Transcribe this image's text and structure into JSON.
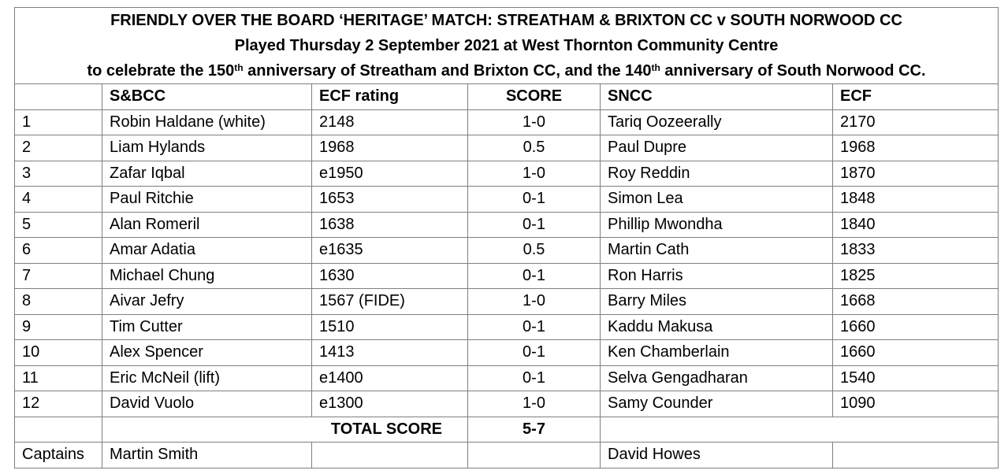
{
  "header": {
    "line1": "FRIENDLY OVER THE BOARD ‘HERITAGE’ MATCH: STREATHAM & BRIXTON CC v SOUTH NORWOOD CC",
    "line2": "Played Thursday 2 September 2021 at West Thornton Community Centre",
    "line3_a": "to celebrate the 150",
    "line3_sup1": "th",
    "line3_b": " anniversary of Streatham and Brixton CC, and the 140",
    "line3_sup2": "th",
    "line3_c": " anniversary of South Norwood CC."
  },
  "columns": {
    "board": "",
    "sbcc": "S&BCC",
    "sbcc_rating": "ECF rating",
    "score": "SCORE",
    "sncc": "SNCC",
    "sncc_rating": "ECF"
  },
  "rows": [
    {
      "board": "1",
      "sb_player": "Robin Haldane (white)",
      "sb_rating": "2148",
      "score": "1-0",
      "sn_player": "Tariq Oozeerally",
      "sn_rating": "2170"
    },
    {
      "board": "2",
      "sb_player": "Liam Hylands",
      "sb_rating": "1968",
      "score": "0.5",
      "sn_player": "Paul Dupre",
      "sn_rating": "1968"
    },
    {
      "board": "3",
      "sb_player": "Zafar Iqbal",
      "sb_rating": "e1950",
      "score": "1-0",
      "sn_player": "Roy Reddin",
      "sn_rating": "1870"
    },
    {
      "board": "4",
      "sb_player": "Paul Ritchie",
      "sb_rating": "1653",
      "score": "0-1",
      "sn_player": "Simon Lea",
      "sn_rating": "1848"
    },
    {
      "board": "5",
      "sb_player": "Alan Romeril",
      "sb_rating": "1638",
      "score": "0-1",
      "sn_player": "Phillip Mwondha",
      "sn_rating": "1840"
    },
    {
      "board": "6",
      "sb_player": "Amar Adatia",
      "sb_rating": "e1635",
      "score": "0.5",
      "sn_player": "Martin Cath",
      "sn_rating": "1833"
    },
    {
      "board": "7",
      "sb_player": "Michael Chung",
      "sb_rating": "1630",
      "score": "0-1",
      "sn_player": "Ron Harris",
      "sn_rating": "1825"
    },
    {
      "board": "8",
      "sb_player": "Aivar Jefry",
      "sb_rating": "1567 (FIDE)",
      "score": "1-0",
      "sn_player": "Barry Miles",
      "sn_rating": "1668"
    },
    {
      "board": "9",
      "sb_player": "Tim Cutter",
      "sb_rating": "1510",
      "score": "0-1",
      "sn_player": "Kaddu Makusa",
      "sn_rating": "1660"
    },
    {
      "board": "10",
      "sb_player": "Alex Spencer",
      "sb_rating": "1413",
      "score": "0-1",
      "sn_player": "Ken Chamberlain",
      "sn_rating": "1660"
    },
    {
      "board": "11",
      "sb_player": "Eric McNeil (lift)",
      "sb_rating": "e1400",
      "score": "0-1",
      "sn_player": "Selva Gengadharan",
      "sn_rating": "1540"
    },
    {
      "board": "12",
      "sb_player": "David Vuolo",
      "sb_rating": "e1300",
      "score": "1-0",
      "sn_player": "Samy Counder",
      "sn_rating": "1090"
    }
  ],
  "total": {
    "label": "TOTAL SCORE",
    "value": "5-7"
  },
  "captains": {
    "label": "Captains",
    "sbcc": "Martin Smith",
    "sncc": "David Howes"
  }
}
